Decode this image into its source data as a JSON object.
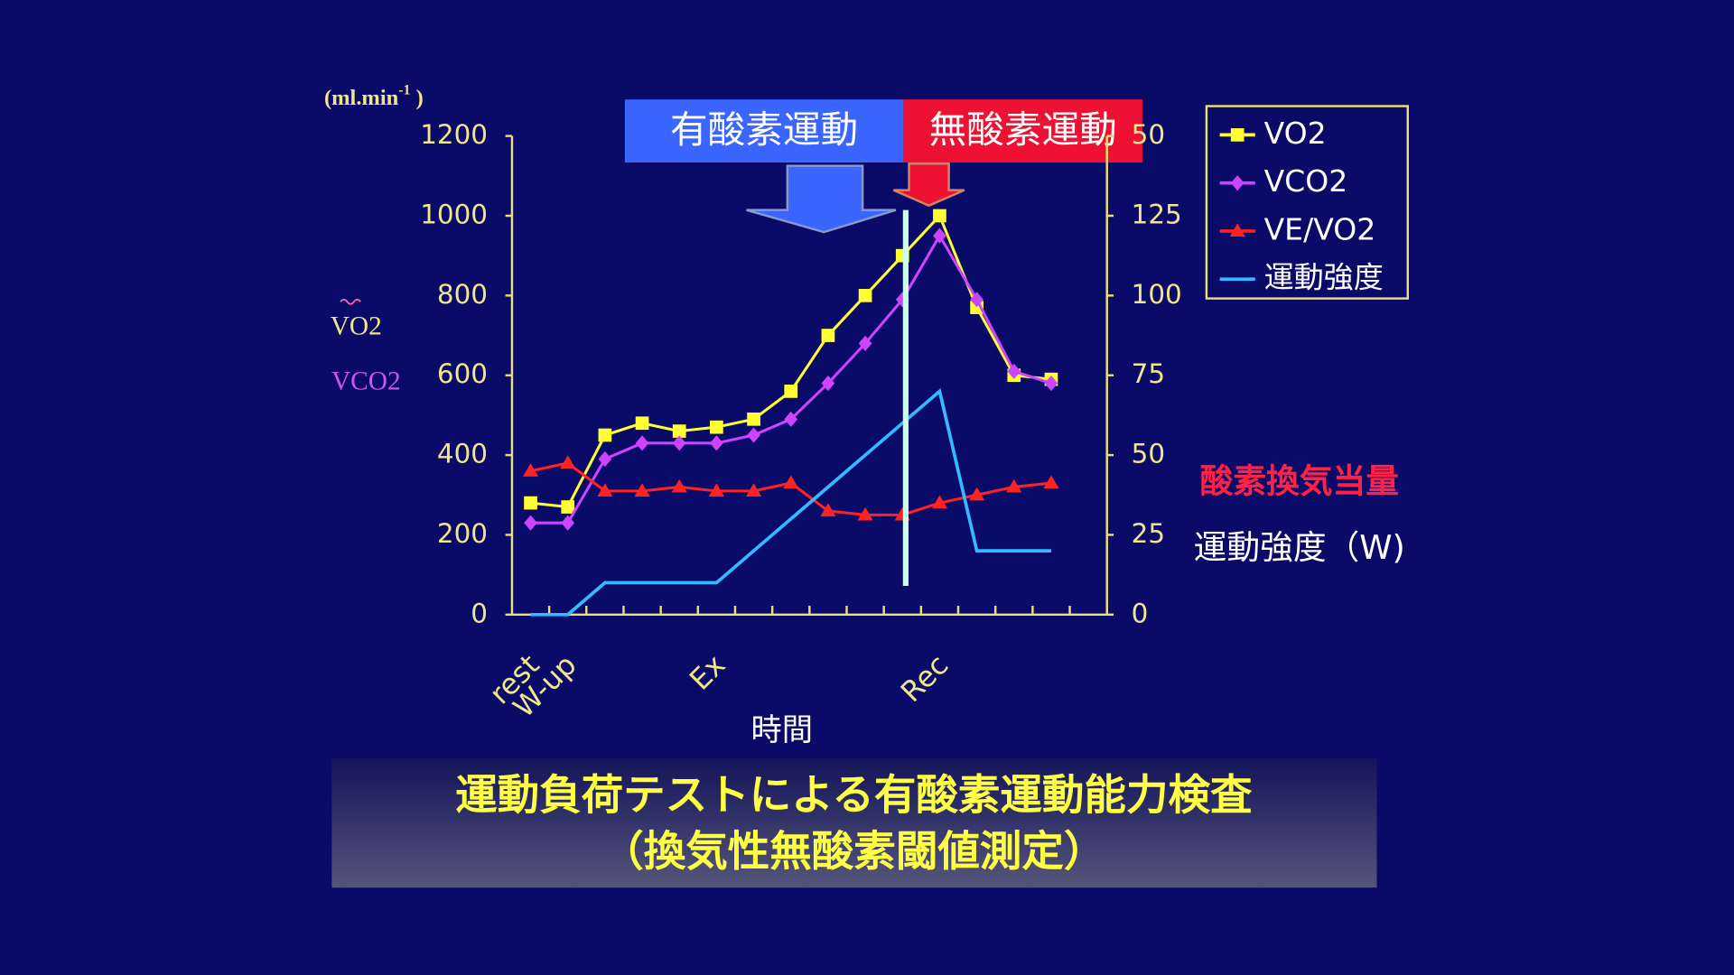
{
  "chart_data": {
    "type": "line",
    "title": "運動負荷テストによる有酸素運動能力検査",
    "subtitle": "（換気性無酸素閾値測定）",
    "phases": [
      "有酸素運動",
      "無酸素運動"
    ],
    "y_label": [
      "(ml.min",
      "-1",
      " )"
    ],
    "y_series_labels": [
      "VO2",
      "VCO2"
    ],
    "y2_labels": [
      "酸素換気当量",
      "運動強度（W)"
    ],
    "x_label": "時間",
    "categories": [
      "rest",
      "W-up",
      null,
      null,
      null,
      "Ex",
      null,
      null,
      null,
      null,
      null,
      "Rec",
      null,
      null,
      null
    ],
    "ylim": [
      0,
      1200
    ],
    "yticks": [
      0,
      200,
      400,
      600,
      800,
      1000,
      1200
    ],
    "y2lim": [
      0,
      150
    ],
    "y2ticks": [
      0,
      25,
      50,
      75,
      100,
      125,
      {
        "value": 150,
        "label": "50"
      }
    ],
    "series": [
      {
        "name": "VO2",
        "color": "#ffff33",
        "marker": "square",
        "values": [
          280,
          270,
          450,
          480,
          460,
          470,
          490,
          560,
          700,
          800,
          900,
          1000,
          770,
          600,
          590
        ]
      },
      {
        "name": "VCO2",
        "color": "#cc44ff",
        "marker": "diamond",
        "values": [
          230,
          230,
          390,
          430,
          430,
          430,
          450,
          490,
          580,
          680,
          790,
          950,
          790,
          610,
          580
        ]
      },
      {
        "name": "VE/VO2",
        "color": "#ff2222",
        "marker": "triangle",
        "values": [
          360,
          380,
          310,
          310,
          320,
          310,
          310,
          330,
          260,
          250,
          250,
          280,
          300,
          320,
          330
        ]
      },
      {
        "name": "運動強度",
        "color": "#33bbff",
        "marker": "none",
        "axis": "y2",
        "values": [
          0,
          0,
          10,
          10,
          10,
          10,
          20,
          30,
          40,
          50,
          60,
          70,
          20,
          20,
          20
        ]
      }
    ]
  }
}
